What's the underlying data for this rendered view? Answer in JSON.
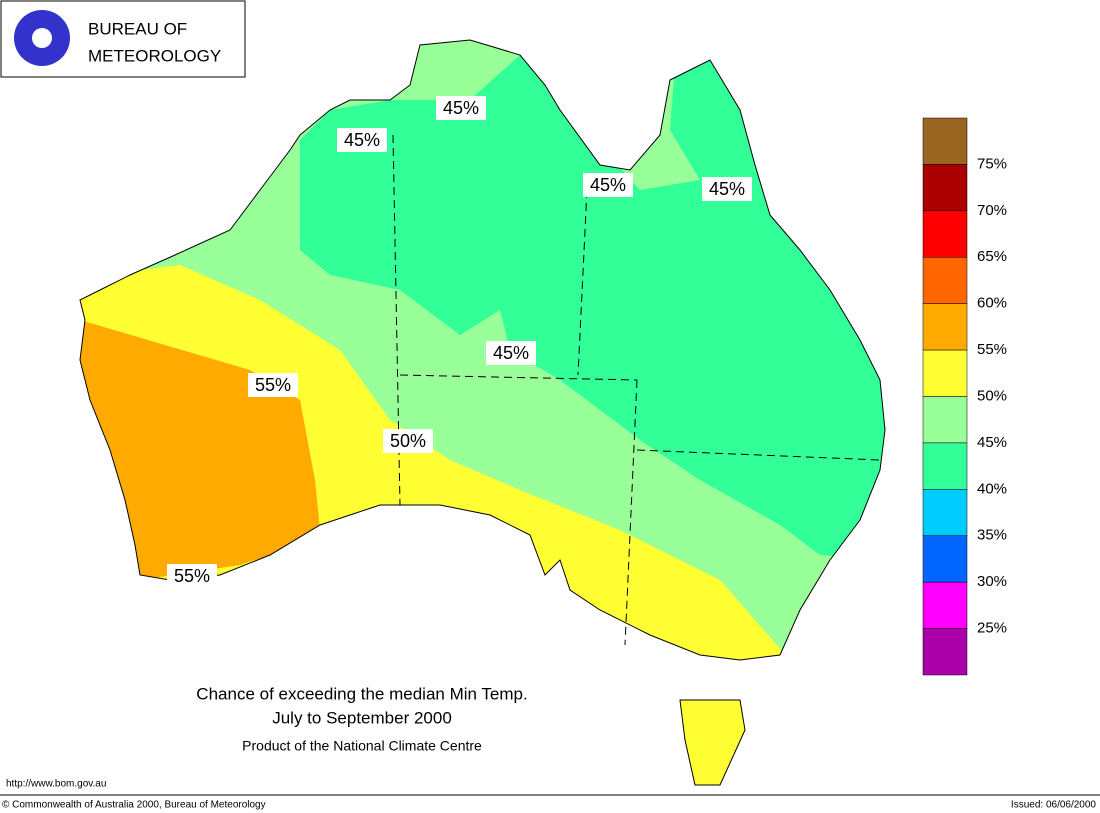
{
  "header": {
    "logo_lines": [
      "BUREAU OF",
      "METEOROLOGY"
    ]
  },
  "map": {
    "contour_labels": [
      "45%",
      "45%",
      "45%",
      "45%",
      "45%",
      "55%",
      "50%",
      "55%"
    ]
  },
  "legend": {
    "colors": [
      "#996622",
      "#aa0000",
      "#ff0000",
      "#ff6600",
      "#ffaa00",
      "#ffff33",
      "#99ff99",
      "#33ff99",
      "#00ccff",
      "#0066ff",
      "#ff00ff",
      "#aa00aa"
    ],
    "labels": [
      "75%",
      "70%",
      "65%",
      "60%",
      "55%",
      "50%",
      "45%",
      "40%",
      "35%",
      "30%",
      "25%"
    ]
  },
  "caption": {
    "title": "Chance of exceeding the median Min Temp.",
    "subtitle": "July to September 2000",
    "credit": "Product of the National Climate Centre"
  },
  "footer": {
    "url": "http://www.bom.gov.au",
    "copyright": "© Commonwealth of Australia 2000, Bureau of Meteorology",
    "issued": "Issued: 06/06/2000"
  }
}
